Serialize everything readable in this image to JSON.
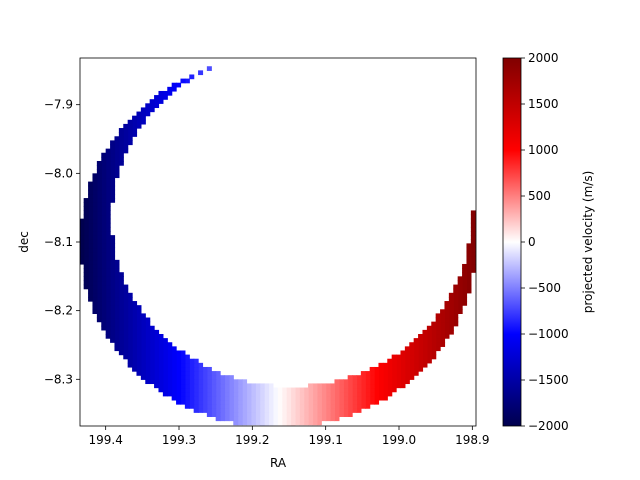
{
  "chart_data": {
    "type": "heatmap",
    "title": "",
    "xlabel": "RA",
    "ylabel": "dec",
    "xlim": [
      199.435,
      198.895
    ],
    "ylim": [
      -8.368,
      -7.832
    ],
    "x_ticks": [
      199.4,
      199.3,
      199.2,
      199.1,
      199.0,
      198.9
    ],
    "x_tick_labels": [
      "199.4",
      "199.3",
      "199.2",
      "199.1",
      "199.0",
      "198.9"
    ],
    "y_ticks": [
      -7.9,
      -8.0,
      -8.1,
      -8.2,
      -8.3
    ],
    "y_tick_labels": [
      "−7.9",
      "−8.0",
      "−8.1",
      "−8.2",
      "−8.3"
    ],
    "grid": false,
    "colormap": "seismic",
    "colorbar": {
      "label": "projected velocity (m/s)",
      "range": [
        -2000,
        2000
      ],
      "ticks": [
        2000,
        1500,
        1000,
        500,
        0,
        -500,
        -1000,
        -1500,
        -2000
      ],
      "tick_labels": [
        "2000",
        "1500",
        "1000",
        "500",
        "0",
        "−500",
        "−1000",
        "−1500",
        "−2000"
      ]
    },
    "crescent": {
      "outer_circle": {
        "center_ra": 199.165,
        "center_dec": -8.1,
        "radius_deg": 0.27
      },
      "inner_circle": {
        "center_ra": 199.147,
        "center_dec": -8.065,
        "radius_deg": 0.245
      },
      "velocity_min": -2000,
      "velocity_max": 2000
    }
  }
}
